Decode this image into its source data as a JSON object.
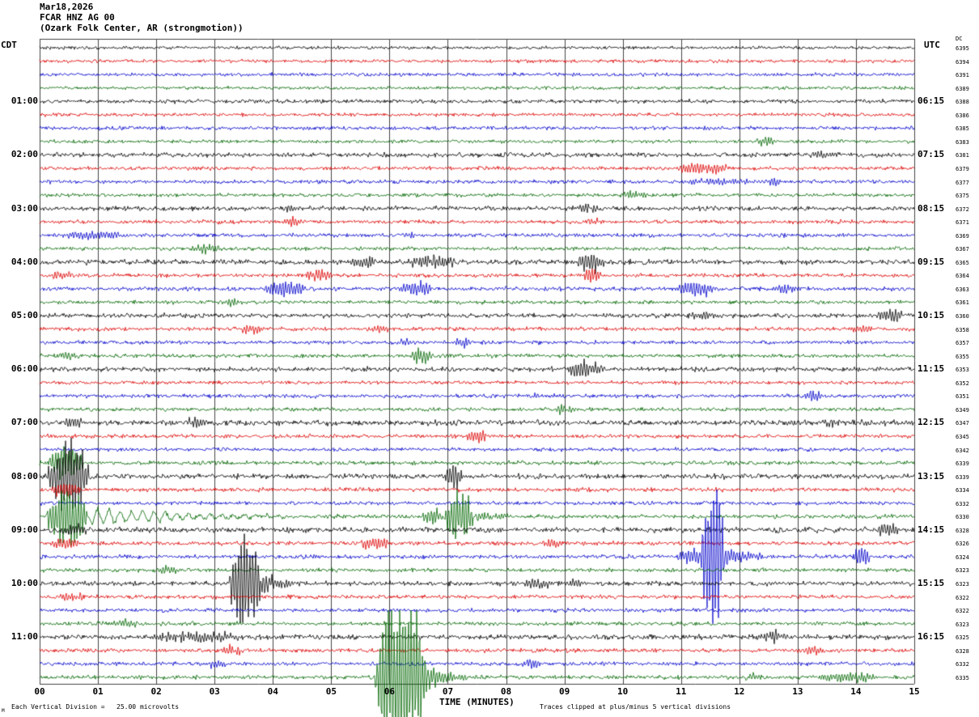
{
  "header": {
    "date": "Mar18,2026",
    "station": "FCAR HNZ AG 00",
    "location": "(Ozark Folk Center, AR (strongmotion))"
  },
  "axes": {
    "left_tz": "CDT",
    "right_tz": "UTC",
    "dc_label": "DC",
    "x_title": "TIME (MINUTES)",
    "minute_labels": [
      "00",
      "01",
      "02",
      "03",
      "04",
      "05",
      "06",
      "07",
      "08",
      "09",
      "10",
      "11",
      "12",
      "13",
      "14",
      "15"
    ]
  },
  "footer": {
    "scale_note": "Each Vertical Division =   25.00 microvolts",
    "clip_note": "Traces clipped at plus/minus 5 vertical divisions",
    "corner_mark": "M"
  },
  "chart_data": {
    "type": "line",
    "kind": "helicorder",
    "minutes_per_line": 15,
    "x_range": [
      0,
      15
    ],
    "microvolts_per_division": 25.0,
    "clip_divisions": 5,
    "trace_colors_cycle": [
      "#000000",
      "#dd0000",
      "#0000cc",
      "#006600"
    ],
    "grid_color": "#444444",
    "rows": [
      {
        "dc": 6395,
        "left": "",
        "right": "",
        "noise": 1.4,
        "events": []
      },
      {
        "dc": 6394,
        "left": "",
        "right": "",
        "noise": 1.5,
        "events": []
      },
      {
        "dc": 6391,
        "left": "",
        "right": "",
        "noise": 1.5,
        "events": []
      },
      {
        "dc": 6389,
        "left": "",
        "right": "",
        "noise": 1.4,
        "events": []
      },
      {
        "dc": 6388,
        "left": "01:00",
        "right": "06:15",
        "noise": 1.8,
        "events": []
      },
      {
        "dc": 6386,
        "left": "",
        "right": "",
        "noise": 1.5,
        "events": []
      },
      {
        "dc": 6385,
        "left": "",
        "right": "",
        "noise": 1.6,
        "events": []
      },
      {
        "dc": 6383,
        "left": "",
        "right": "",
        "noise": 1.5,
        "events": [
          {
            "m": 12.25,
            "dur": 0.4,
            "amp": 5
          }
        ]
      },
      {
        "dc": 6381,
        "left": "02:00",
        "right": "07:15",
        "noise": 2.0,
        "events": [
          {
            "m": 13.1,
            "dur": 0.6,
            "amp": 4
          }
        ]
      },
      {
        "dc": 6379,
        "left": "",
        "right": "",
        "noise": 1.6,
        "events": [
          {
            "m": 10.95,
            "dur": 0.85,
            "amp": 6
          }
        ]
      },
      {
        "dc": 6377,
        "left": "",
        "right": "",
        "noise": 1.7,
        "events": [
          {
            "m": 11.0,
            "dur": 1.3,
            "amp": 3
          },
          {
            "m": 12.45,
            "dur": 0.3,
            "amp": 4
          }
        ]
      },
      {
        "dc": 6375,
        "left": "",
        "right": "",
        "noise": 1.6,
        "events": [
          {
            "m": 9.95,
            "dur": 0.5,
            "amp": 4
          }
        ]
      },
      {
        "dc": 6372,
        "left": "03:00",
        "right": "08:15",
        "noise": 2.0,
        "events": [
          {
            "m": 4.2,
            "dur": 0.3,
            "amp": 4
          },
          {
            "m": 9.15,
            "dur": 0.45,
            "amp": 5
          }
        ]
      },
      {
        "dc": 6371,
        "left": "",
        "right": "",
        "noise": 1.7,
        "events": [
          {
            "m": 4.2,
            "dur": 0.35,
            "amp": 5
          },
          {
            "m": 9.35,
            "dur": 0.3,
            "amp": 3
          }
        ]
      },
      {
        "dc": 6369,
        "left": "",
        "right": "",
        "noise": 1.7,
        "events": [
          {
            "m": 0.3,
            "dur": 1.2,
            "amp": 4
          },
          {
            "m": 6.2,
            "dur": 0.3,
            "amp": 3
          }
        ]
      },
      {
        "dc": 6367,
        "left": "",
        "right": "",
        "noise": 1.6,
        "events": [
          {
            "m": 2.6,
            "dur": 0.5,
            "amp": 4
          }
        ]
      },
      {
        "dc": 6365,
        "left": "04:00",
        "right": "09:15",
        "noise": 2.2,
        "events": [
          {
            "m": 5.3,
            "dur": 0.5,
            "amp": 5
          },
          {
            "m": 6.3,
            "dur": 0.9,
            "amp": 6
          },
          {
            "m": 9.2,
            "dur": 0.5,
            "amp": 9
          }
        ]
      },
      {
        "dc": 6364,
        "left": "",
        "right": "",
        "noise": 1.7,
        "events": [
          {
            "m": 0.2,
            "dur": 0.4,
            "amp": 4
          },
          {
            "m": 4.55,
            "dur": 0.5,
            "amp": 6
          },
          {
            "m": 9.3,
            "dur": 0.35,
            "amp": 7
          }
        ]
      },
      {
        "dc": 6363,
        "left": "",
        "right": "",
        "noise": 1.8,
        "events": [
          {
            "m": 3.8,
            "dur": 0.8,
            "amp": 7
          },
          {
            "m": 6.15,
            "dur": 0.6,
            "amp": 7
          },
          {
            "m": 10.9,
            "dur": 0.7,
            "amp": 7
          },
          {
            "m": 12.6,
            "dur": 0.35,
            "amp": 5
          }
        ]
      },
      {
        "dc": 6361,
        "left": "",
        "right": "",
        "noise": 1.6,
        "events": [
          {
            "m": 3.1,
            "dur": 0.4,
            "amp": 4
          }
        ]
      },
      {
        "dc": 6360,
        "left": "05:00",
        "right": "10:15",
        "noise": 2.0,
        "events": [
          {
            "m": 11.1,
            "dur": 0.5,
            "amp": 5
          },
          {
            "m": 14.35,
            "dur": 0.5,
            "amp": 6
          }
        ]
      },
      {
        "dc": 6358,
        "left": "",
        "right": "",
        "noise": 1.7,
        "events": [
          {
            "m": 3.4,
            "dur": 0.4,
            "amp": 5
          },
          {
            "m": 5.6,
            "dur": 0.4,
            "amp": 4
          },
          {
            "m": 13.9,
            "dur": 0.4,
            "amp": 4
          }
        ]
      },
      {
        "dc": 6357,
        "left": "",
        "right": "",
        "noise": 1.6,
        "events": [
          {
            "m": 6.1,
            "dur": 0.3,
            "amp": 4
          },
          {
            "m": 7.1,
            "dur": 0.3,
            "amp": 5
          }
        ]
      },
      {
        "dc": 6355,
        "left": "",
        "right": "",
        "noise": 1.7,
        "events": [
          {
            "m": 0.3,
            "dur": 0.5,
            "amp": 4
          },
          {
            "m": 6.35,
            "dur": 0.4,
            "amp": 8
          }
        ]
      },
      {
        "dc": 6353,
        "left": "06:00",
        "right": "11:15",
        "noise": 2.0,
        "events": [
          {
            "m": 9.0,
            "dur": 0.7,
            "amp": 7
          }
        ]
      },
      {
        "dc": 6352,
        "left": "",
        "right": "",
        "noise": 1.6,
        "events": []
      },
      {
        "dc": 6351,
        "left": "",
        "right": "",
        "noise": 1.7,
        "events": [
          {
            "m": 8.3,
            "dur": 0.3,
            "amp": 3
          },
          {
            "m": 13.1,
            "dur": 0.35,
            "amp": 6
          }
        ]
      },
      {
        "dc": 6349,
        "left": "",
        "right": "",
        "noise": 1.6,
        "events": [
          {
            "m": 8.8,
            "dur": 0.4,
            "amp": 4
          }
        ]
      },
      {
        "dc": 6347,
        "left": "07:00",
        "right": "12:15",
        "noise": 2.4,
        "events": [
          {
            "m": 0.4,
            "dur": 0.4,
            "amp": 5
          },
          {
            "m": 2.5,
            "dur": 0.4,
            "amp": 4
          },
          {
            "m": 13.4,
            "dur": 0.4,
            "amp": 4
          }
        ]
      },
      {
        "dc": 6345,
        "left": "",
        "right": "",
        "noise": 1.7,
        "events": [
          {
            "m": 7.3,
            "dur": 0.4,
            "amp": 6
          }
        ]
      },
      {
        "dc": 6342,
        "left": "",
        "right": "",
        "noise": 1.6,
        "events": []
      },
      {
        "dc": 6339,
        "left": "",
        "right": "",
        "noise": 1.8,
        "events": [
          {
            "m": 0.15,
            "dur": 0.6,
            "amp": 18
          }
        ]
      },
      {
        "dc": 6339,
        "left": "08:00",
        "right": "13:15",
        "noise": 2.2,
        "events": [
          {
            "m": 0.12,
            "dur": 0.75,
            "amp": 34
          },
          {
            "m": 6.95,
            "dur": 0.3,
            "amp": 13
          }
        ]
      },
      {
        "dc": 6334,
        "left": "",
        "right": "",
        "noise": 1.8,
        "events": [
          {
            "m": 0.2,
            "dur": 0.5,
            "amp": 7
          }
        ]
      },
      {
        "dc": 6332,
        "left": "",
        "right": "",
        "noise": 1.7,
        "events": []
      },
      {
        "dc": 6330,
        "left": "",
        "right": "",
        "noise": 1.8,
        "events": [
          {
            "m": 0.12,
            "dur": 0.7,
            "amp": 30
          },
          {
            "m": 0.85,
            "dur": 3.6,
            "amp": 9,
            "f": 0.45,
            "shape": "decay"
          },
          {
            "m": 6.55,
            "dur": 0.35,
            "amp": 8
          },
          {
            "m": 6.95,
            "dur": 0.5,
            "amp": 24
          },
          {
            "m": 7.5,
            "dur": 0.9,
            "amp": 6,
            "shape": "decay"
          }
        ]
      },
      {
        "dc": 6328,
        "left": "09:00",
        "right": "14:15",
        "noise": 2.3,
        "events": [
          {
            "m": 0.3,
            "dur": 0.6,
            "amp": 4
          },
          {
            "m": 14.35,
            "dur": 0.45,
            "amp": 6
          }
        ]
      },
      {
        "dc": 6326,
        "left": "",
        "right": "",
        "noise": 1.8,
        "events": [
          {
            "m": 0.2,
            "dur": 0.5,
            "amp": 5
          },
          {
            "m": 5.5,
            "dur": 0.5,
            "amp": 6
          },
          {
            "m": 8.6,
            "dur": 0.4,
            "amp": 4
          }
        ]
      },
      {
        "dc": 6324,
        "left": "",
        "right": "",
        "noise": 1.8,
        "events": [
          {
            "m": 10.9,
            "dur": 0.6,
            "amp": 8
          },
          {
            "m": 11.35,
            "dur": 0.4,
            "amp": 80
          },
          {
            "m": 11.75,
            "dur": 0.9,
            "amp": 11,
            "shape": "decay"
          },
          {
            "m": 13.95,
            "dur": 0.3,
            "amp": 8
          }
        ]
      },
      {
        "dc": 6323,
        "left": "",
        "right": "",
        "noise": 1.7,
        "events": [
          {
            "m": 2.0,
            "dur": 0.4,
            "amp": 4
          }
        ]
      },
      {
        "dc": 6323,
        "left": "10:00",
        "right": "15:15",
        "noise": 2.0,
        "events": [
          {
            "m": 3.25,
            "dur": 0.55,
            "amp": 50
          },
          {
            "m": 3.8,
            "dur": 0.6,
            "amp": 13,
            "shape": "decay"
          },
          {
            "m": 8.3,
            "dur": 0.5,
            "amp": 5
          },
          {
            "m": 9.0,
            "dur": 0.4,
            "amp": 4
          }
        ]
      },
      {
        "dc": 6322,
        "left": "",
        "right": "",
        "noise": 1.7,
        "events": [
          {
            "m": 0.3,
            "dur": 0.5,
            "amp": 4
          }
        ]
      },
      {
        "dc": 6322,
        "left": "",
        "right": "",
        "noise": 1.6,
        "events": []
      },
      {
        "dc": 6323,
        "left": "",
        "right": "",
        "noise": 1.7,
        "events": [
          {
            "m": 1.2,
            "dur": 0.5,
            "amp": 4
          }
        ]
      },
      {
        "dc": 6325,
        "left": "11:00",
        "right": "16:15",
        "noise": 2.2,
        "events": [
          {
            "m": 1.8,
            "dur": 1.7,
            "amp": 5
          },
          {
            "m": 12.35,
            "dur": 0.5,
            "amp": 6
          }
        ]
      },
      {
        "dc": 6328,
        "left": "",
        "right": "",
        "noise": 1.8,
        "events": [
          {
            "m": 3.1,
            "dur": 0.4,
            "amp": 5
          },
          {
            "m": 13.1,
            "dur": 0.4,
            "amp": 4
          }
        ]
      },
      {
        "dc": 6332,
        "left": "",
        "right": "",
        "noise": 1.7,
        "events": [
          {
            "m": 2.9,
            "dur": 0.3,
            "amp": 4
          },
          {
            "m": 8.25,
            "dur": 0.35,
            "amp": 5
          }
        ]
      },
      {
        "dc": 6335,
        "left": "",
        "right": "",
        "noise": 1.8,
        "events": [
          {
            "m": 5.75,
            "dur": 0.9,
            "amp": 88
          },
          {
            "m": 6.65,
            "dur": 1.0,
            "amp": 11,
            "shape": "decay"
          },
          {
            "m": 12.1,
            "dur": 0.3,
            "amp": 4
          },
          {
            "m": 13.3,
            "dur": 1.1,
            "amp": 5
          }
        ]
      }
    ]
  }
}
